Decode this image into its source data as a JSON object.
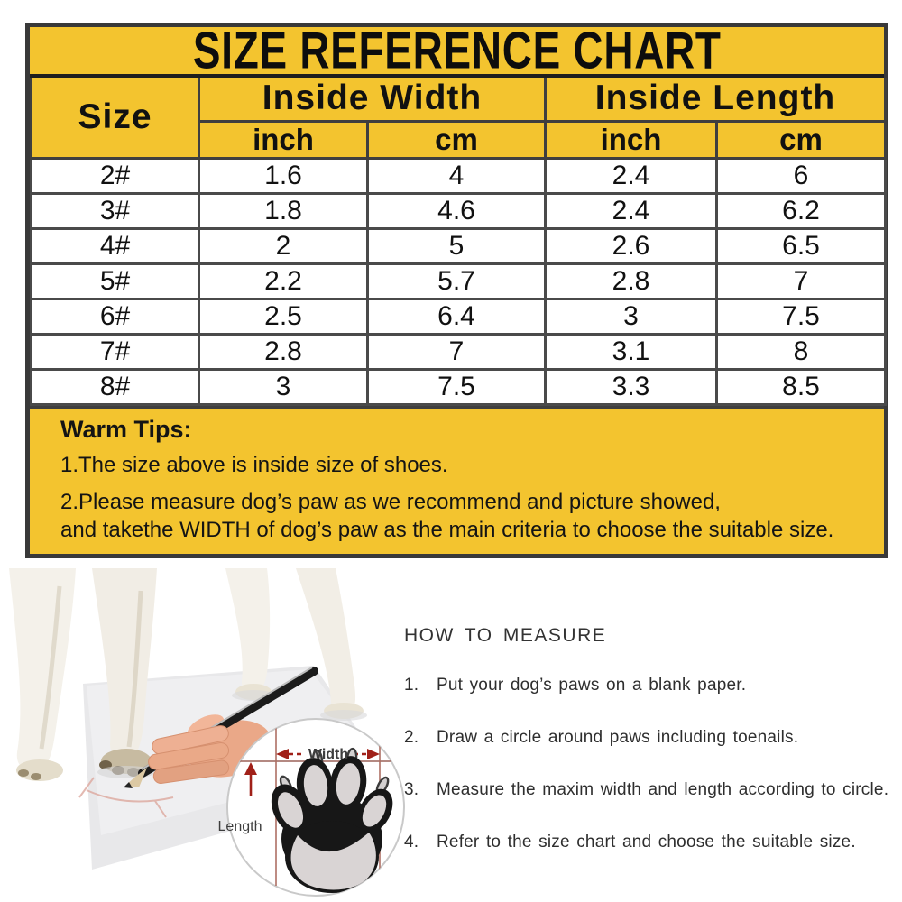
{
  "title": "SIZE REFERENCE CHART",
  "table": {
    "col_size": "Size",
    "col_width": "Inside Width",
    "col_length": "Inside Length",
    "unit_w_inch": "inch",
    "unit_w_cm": "cm",
    "unit_l_inch": "inch",
    "unit_l_cm": "cm",
    "rows": [
      {
        "size": "2#",
        "w_in": "1.6",
        "w_cm": "4",
        "l_in": "2.4",
        "l_cm": "6"
      },
      {
        "size": "3#",
        "w_in": "1.8",
        "w_cm": "4.6",
        "l_in": "2.4",
        "l_cm": "6.2"
      },
      {
        "size": "4#",
        "w_in": "2",
        "w_cm": "5",
        "l_in": "2.6",
        "l_cm": "6.5"
      },
      {
        "size": "5#",
        "w_in": "2.2",
        "w_cm": "5.7",
        "l_in": "2.8",
        "l_cm": "7"
      },
      {
        "size": "6#",
        "w_in": "2.5",
        "w_cm": "6.4",
        "l_in": "3",
        "l_cm": "7.5"
      },
      {
        "size": "7#",
        "w_in": "2.8",
        "w_cm": "7",
        "l_in": "3.1",
        "l_cm": "8"
      },
      {
        "size": "8#",
        "w_in": "3",
        "w_cm": "7.5",
        "l_in": "3.3",
        "l_cm": "8.5"
      }
    ]
  },
  "warm_tips": {
    "heading": "Warm Tips:",
    "line1": "1.The size above is inside size of shoes.",
    "line2": "2.Please measure dog’s paw as we recommend and picture showed,",
    "line3": "and takethe WIDTH of dog’s paw as the main criteria to choose the suitable size."
  },
  "how_to_measure": {
    "heading": "HOW TO MEASURE",
    "steps": [
      {
        "num": "1.",
        "text": "Put your dog’s paws on a blank paper."
      },
      {
        "num": "2.",
        "text": "Draw a circle around paws including toenails."
      },
      {
        "num": "3.",
        "text": "Measure the maxim width and length according to circle."
      },
      {
        "num": "4.",
        "text": "Refer to the size chart and choose the suitable size."
      }
    ]
  },
  "diagram": {
    "width_label": "Width",
    "length_label": "Length"
  },
  "colors": {
    "yellow": "#f3c42f",
    "border_dark": "#393939",
    "grid_gray": "#4a4a4a",
    "arrow_red": "#a02018",
    "paw_black": "#171717",
    "pad_gray": "#d9d4d4"
  },
  "chart_data": {
    "type": "table",
    "title": "SIZE REFERENCE CHART",
    "columns": [
      "Size",
      "Inside Width (inch)",
      "Inside Width (cm)",
      "Inside Length (inch)",
      "Inside Length (cm)"
    ],
    "rows": [
      [
        "2#",
        1.6,
        4,
        2.4,
        6
      ],
      [
        "3#",
        1.8,
        4.6,
        2.4,
        6.2
      ],
      [
        "4#",
        2,
        5,
        2.6,
        6.5
      ],
      [
        "5#",
        2.2,
        5.7,
        2.8,
        7
      ],
      [
        "6#",
        2.5,
        6.4,
        3,
        7.5
      ],
      [
        "7#",
        2.8,
        7,
        3.1,
        8
      ],
      [
        "8#",
        3,
        7.5,
        3.3,
        8.5
      ]
    ]
  }
}
